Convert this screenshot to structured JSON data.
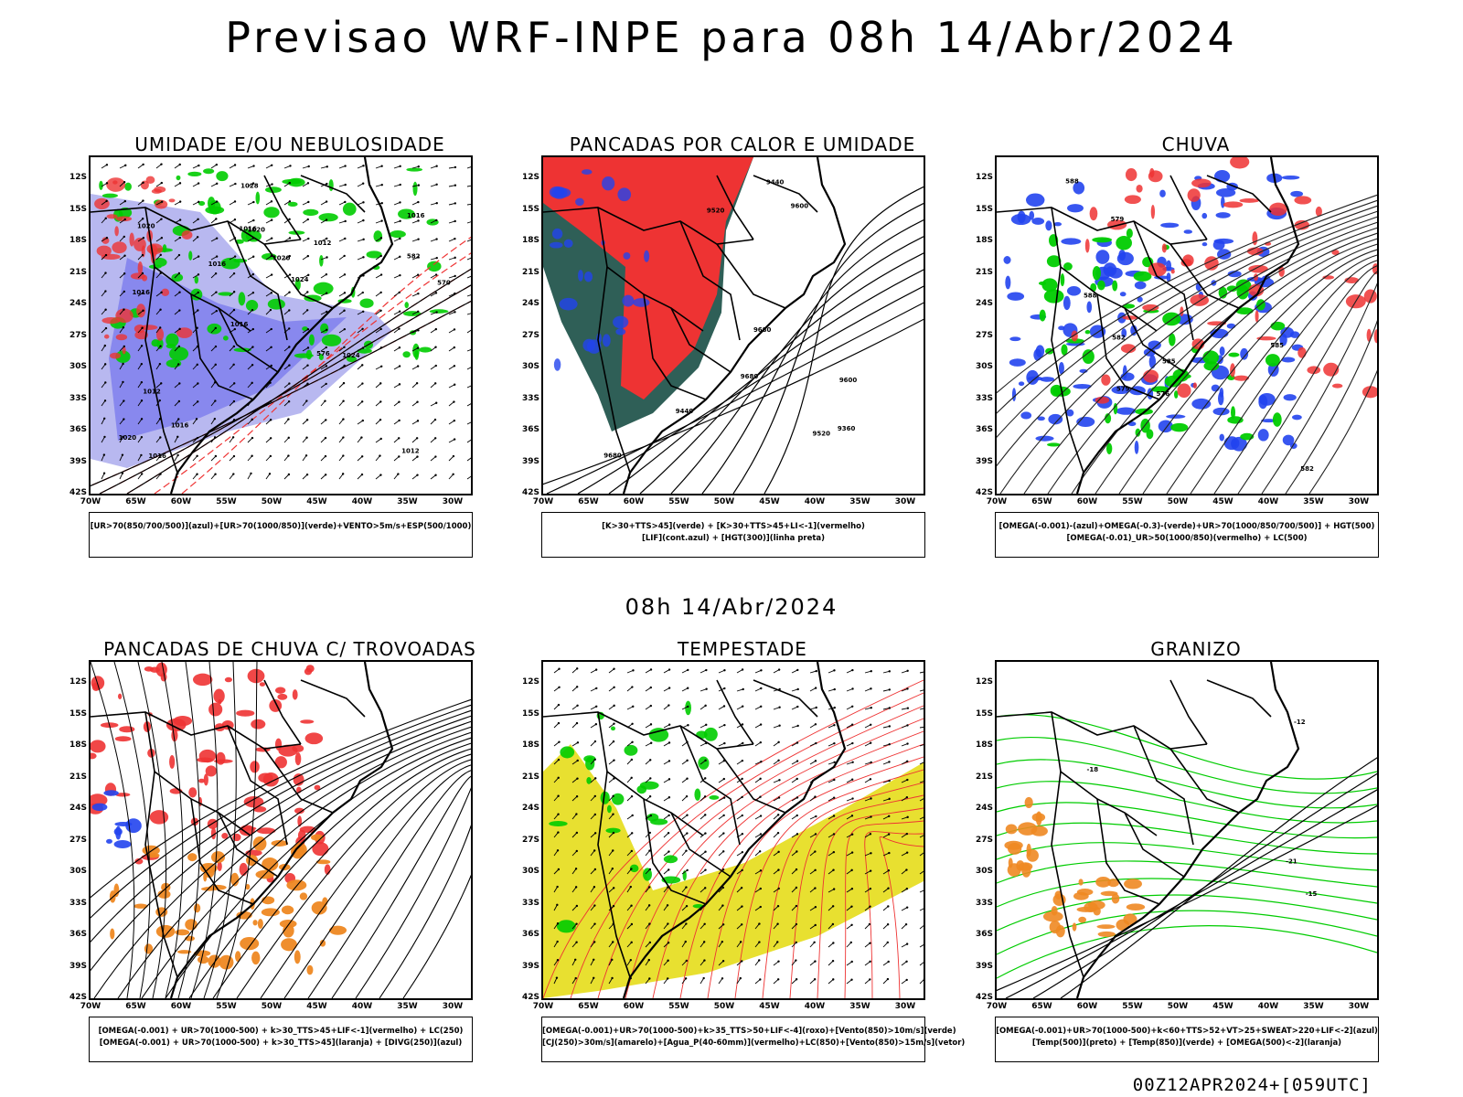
{
  "main_title": "Previsao WRF-INPE  para 08h 14/Abr/2024",
  "mid_title": "08h 14/Abr/2024",
  "footer": "00Z12APR2024+[059UTC]",
  "axes": {
    "lat_labels": [
      "12S",
      "15S",
      "18S",
      "21S",
      "24S",
      "27S",
      "30S",
      "33S",
      "36S",
      "39S",
      "42S"
    ],
    "lon_labels": [
      "70W",
      "65W",
      "60W",
      "55W",
      "50W",
      "45W",
      "40W",
      "35W",
      "30W"
    ]
  },
  "colors": {
    "blue_shade": "#8888ee",
    "light_blue": "#b8b8f0",
    "green": "#00cc00",
    "red": "#ee3333",
    "dark_teal": "#2f5f57",
    "orange": "#ee8822",
    "yellow": "#e8e030",
    "blue": "#2244ee"
  },
  "panels": [
    {
      "id": "umidade",
      "title": "UMIDADE E/OU NEBULOSIDADE",
      "legend": [
        "[UR>70(850/700/500)](azul)+[UR>70(1000/850)](verde)+VENTO>5m/s+ESP(500/1000)"
      ],
      "contour_labels": [
        "1012",
        "1016",
        "1016",
        "1016",
        "1012",
        "1016",
        "1016",
        "1020",
        "1012",
        "1016",
        "1020",
        "1016",
        "1020",
        "1024",
        "1024",
        "1020",
        "1028",
        "570",
        "576",
        "582"
      ]
    },
    {
      "id": "pancadas-calor",
      "title": "PANCADAS POR CALOR E UMIDADE",
      "legend": [
        "[K>30+TTS>45](verde) + [K>30+TTS>45+LI<-1](vermelho)",
        "[LIF](cont.azul) + [HGT(300)](linha preta)"
      ],
      "contour_labels": [
        "9680",
        "9600",
        "9680",
        "9680",
        "9520",
        "9440",
        "9360",
        "9600",
        "9520",
        "9440"
      ]
    },
    {
      "id": "chuva",
      "title": "CHUVA",
      "legend": [
        "[OMEGA(-0.001)-(azul)+OMEGA(-0.3)-(verde)+UR>70(1000/850/700/500)] + HGT(500)",
        "[OMEGA(-0.01)_UR>50(1000/850)(vermelho) + LC(500)"
      ],
      "contour_labels": [
        "585",
        "588",
        "588",
        "585",
        "582",
        "579",
        "576",
        "582",
        "579"
      ]
    },
    {
      "id": "pancadas-trovoadas",
      "title": "PANCADAS DE CHUVA C/ TROVOADAS",
      "legend": [
        "[OMEGA(-0.001) + UR>70(1000-500) + k>30_TTS>45+LIF<-1](vermelho) + LC(250)",
        "[OMEGA(-0.001) + UR>70(1000-500) + k>30_TTS>45](laranja) + [DIVG(250)](azul)"
      ],
      "contour_labels": []
    },
    {
      "id": "tempestade",
      "title": "TEMPESTADE",
      "legend": [
        "[OMEGA(-0.001)+UR>70(1000-500)+k>35_TTS>50+LIF<-4](roxo)+[Vento(850)>10m/s](verde)",
        "[CJ(250)>30m/s](amarelo)+[Agua_P(40-60mm)](vermelho)+LC(850)+[Vento(850)>15m/s](vetor)"
      ],
      "contour_labels": []
    },
    {
      "id": "granizo",
      "title": "GRANIZO",
      "legend": [
        "[OMEGA(-0.001)+UR>70(1000-500)+k<60+TTS>52+VT>25+SWEAT>220+LIF<-2](azul)",
        "[Temp(500)](preto) + [Temp(850)](verde) + [OMEGA(500)<-2](laranja)"
      ],
      "contour_labels": [
        "-15",
        "-12",
        "-18",
        "-21"
      ]
    }
  ]
}
